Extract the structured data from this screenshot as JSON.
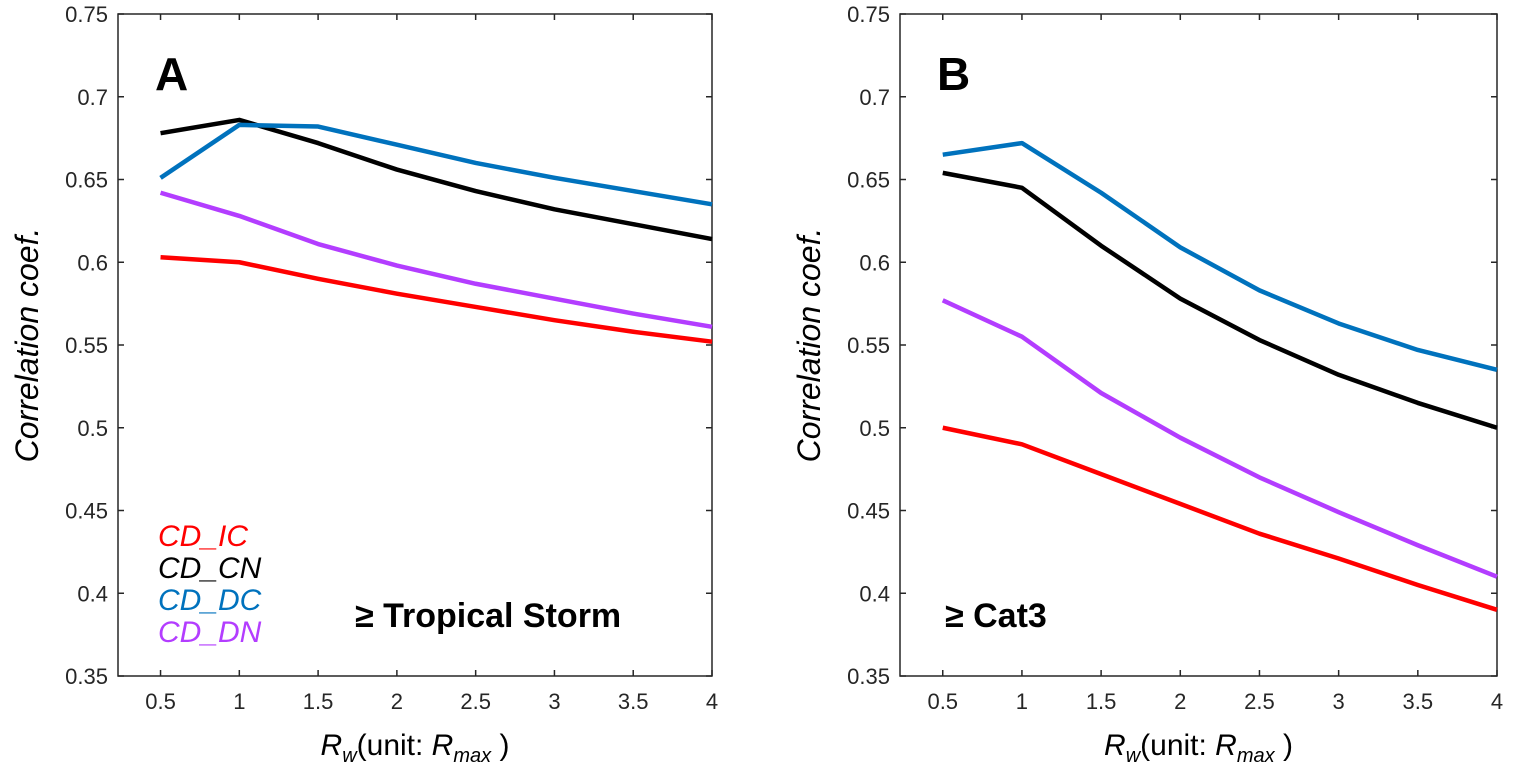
{
  "chart_data": [
    {
      "type": "line",
      "panel_label": "A",
      "condition": "≥ Tropical Storm",
      "xlabel": "R_w(unit: R_max)",
      "ylabel": "Correlation coef.",
      "x": [
        0.5,
        1,
        1.5,
        2,
        2.5,
        3,
        3.5,
        4
      ],
      "xticks": [
        "0.5",
        "1",
        "1.5",
        "2",
        "2.5",
        "3",
        "3.5",
        "4"
      ],
      "yticks": [
        "0.35",
        "0.4",
        "0.45",
        "0.5",
        "0.55",
        "0.6",
        "0.65",
        "0.7",
        "0.75"
      ],
      "xlim": [
        0.23,
        4.0
      ],
      "ylim": [
        0.35,
        0.75
      ],
      "legend_position": "bottom-left",
      "series": [
        {
          "name": "CD_IC",
          "color": "#ff0000",
          "values": [
            0.603,
            0.6,
            0.59,
            0.581,
            0.573,
            0.565,
            0.558,
            0.552
          ]
        },
        {
          "name": "CD_CN",
          "color": "#000000",
          "values": [
            0.678,
            0.686,
            0.672,
            0.656,
            0.643,
            0.632,
            0.623,
            0.614
          ]
        },
        {
          "name": "CD_DC",
          "color": "#0072bd",
          "values": [
            0.651,
            0.683,
            0.682,
            0.671,
            0.66,
            0.651,
            0.643,
            0.635
          ]
        },
        {
          "name": "CD_DN",
          "color": "#b33dff",
          "values": [
            0.642,
            0.628,
            0.611,
            0.598,
            0.587,
            0.578,
            0.569,
            0.561
          ]
        }
      ]
    },
    {
      "type": "line",
      "panel_label": "B",
      "condition": "≥ Cat3",
      "xlabel": "R_w(unit: R_max)",
      "ylabel": "Correlation coef.",
      "x": [
        0.5,
        1,
        1.5,
        2,
        2.5,
        3,
        3.5,
        4
      ],
      "xticks": [
        "0.5",
        "1",
        "1.5",
        "2",
        "2.5",
        "3",
        "3.5",
        "4"
      ],
      "yticks": [
        "0.35",
        "0.4",
        "0.45",
        "0.5",
        "0.55",
        "0.6",
        "0.65",
        "0.7",
        "0.75"
      ],
      "xlim": [
        0.23,
        4.0
      ],
      "ylim": [
        0.35,
        0.75
      ],
      "series": [
        {
          "name": "CD_IC",
          "color": "#ff0000",
          "values": [
            0.5,
            0.49,
            0.472,
            0.454,
            0.436,
            0.421,
            0.405,
            0.39
          ]
        },
        {
          "name": "CD_CN",
          "color": "#000000",
          "values": [
            0.654,
            0.645,
            0.61,
            0.578,
            0.553,
            0.532,
            0.515,
            0.5
          ]
        },
        {
          "name": "CD_DC",
          "color": "#0072bd",
          "values": [
            0.665,
            0.672,
            0.642,
            0.609,
            0.583,
            0.563,
            0.547,
            0.535
          ]
        },
        {
          "name": "CD_DN",
          "color": "#b33dff",
          "values": [
            0.577,
            0.555,
            0.521,
            0.494,
            0.47,
            0.449,
            0.429,
            0.41
          ]
        }
      ]
    }
  ]
}
